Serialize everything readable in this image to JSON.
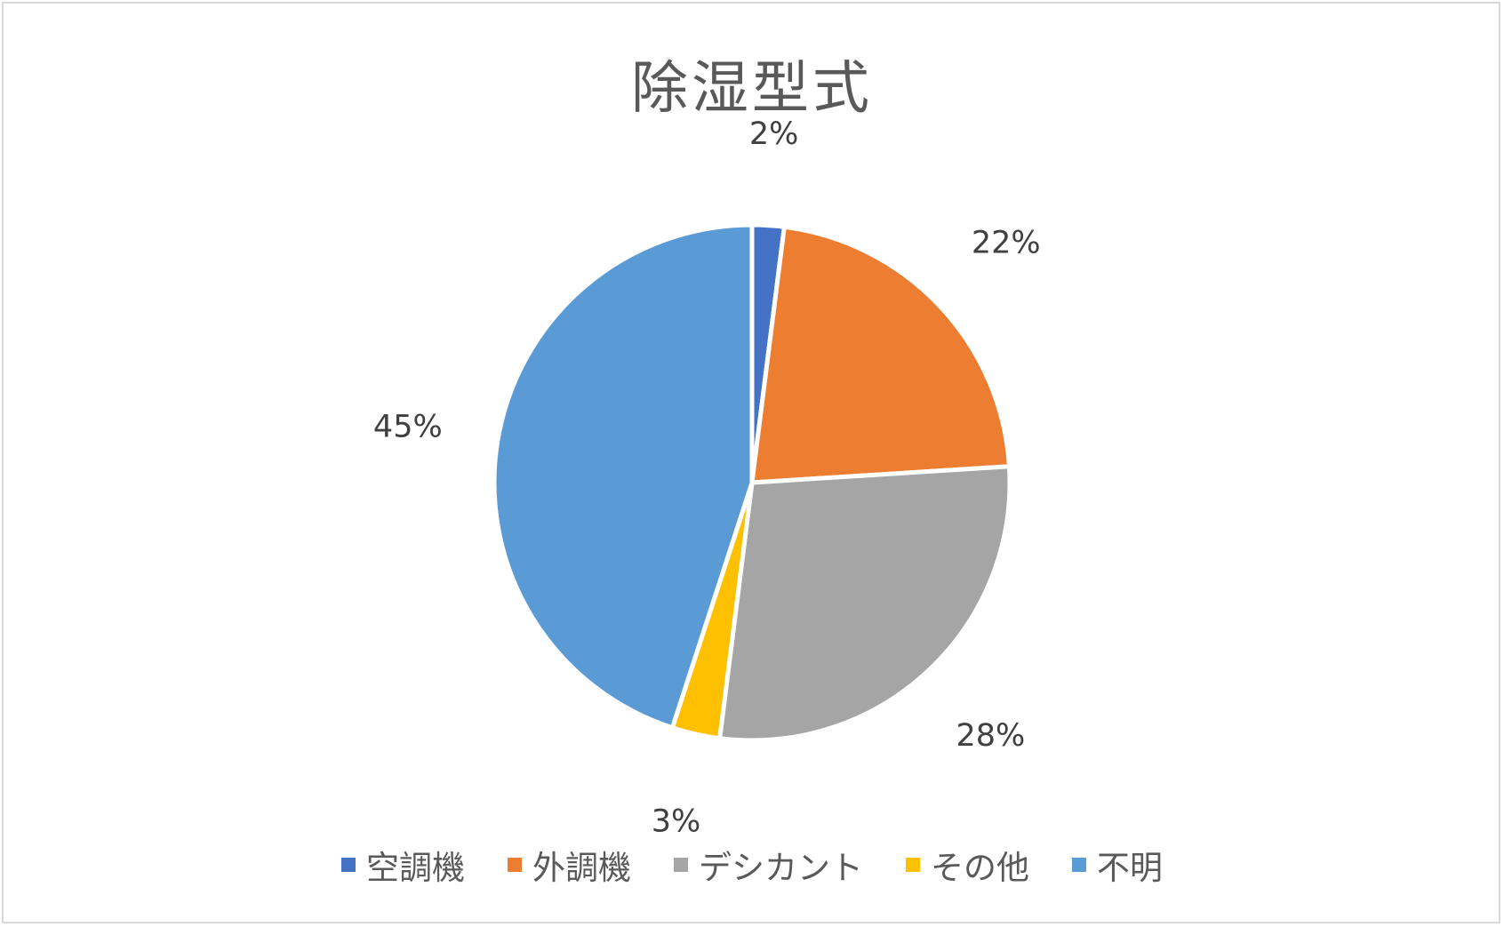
{
  "chart_data": {
    "type": "pie",
    "title": "除湿型式",
    "categories": [
      "空調機",
      "外調機",
      "デシカント",
      "その他",
      "不明"
    ],
    "values": [
      2,
      22,
      28,
      3,
      45
    ],
    "labels": [
      "2%",
      "22%",
      "28%",
      "3%",
      "45%"
    ],
    "colors": [
      "#4472C4",
      "#ED7D31",
      "#A5A5A5",
      "#FFC000",
      "#5B9BD5"
    ],
    "legend_position": "bottom",
    "data_label_color": "#404040",
    "slice_border_color": "#ffffff"
  }
}
